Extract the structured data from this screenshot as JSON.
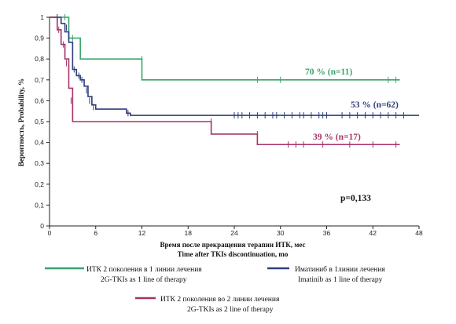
{
  "chart_data": {
    "type": "line",
    "xlabel_ru": "Время после прекращения терапии ИТК, мес",
    "xlabel_en": "Time after TKIs discontinuation,  mo",
    "ylabel": "Вероятность, Probability, %",
    "xlim": [
      0,
      48
    ],
    "ylim": [
      0,
      1
    ],
    "x_ticks": [
      0,
      6,
      12,
      18,
      24,
      30,
      36,
      42,
      48
    ],
    "y_ticks": [
      0,
      0.1,
      0.2,
      0.3,
      0.4,
      0.5,
      0.6,
      0.7,
      0.8,
      0.9,
      1
    ],
    "y_tick_labels": [
      "0",
      "0,1",
      "0,2",
      "0,3",
      "0,4",
      "0,5",
      "0,6",
      "0,7",
      "0,8",
      "0,9",
      "1"
    ],
    "grid": false,
    "p_value": "p=0,133",
    "series": [
      {
        "name": "ИТК 2 поколения в 1 линии лечения / 2G-TKIs as 1 line of therapy",
        "color": "#3aa36a",
        "annotation": "70 % (n=11)",
        "steps": [
          [
            0,
            1.0
          ],
          [
            2.5,
            0.9
          ],
          [
            4.0,
            0.8
          ],
          [
            12.0,
            0.7
          ],
          [
            45.5,
            0.7
          ]
        ],
        "censors": [
          [
            2.0,
            1.0
          ],
          [
            3.0,
            0.9
          ],
          [
            12.0,
            0.8
          ],
          [
            27.0,
            0.7
          ],
          [
            30.0,
            0.7
          ],
          [
            44.0,
            0.7
          ],
          [
            45.0,
            0.7
          ]
        ]
      },
      {
        "name": "Иматиниб в 1линии лечения / Imatinib as 1 line of therapy",
        "color": "#2e3f7a",
        "annotation": "53 % (n=62)",
        "steps": [
          [
            0,
            1.0
          ],
          [
            1.5,
            0.97
          ],
          [
            2.0,
            0.93
          ],
          [
            2.5,
            0.88
          ],
          [
            3.0,
            0.75
          ],
          [
            3.5,
            0.72
          ],
          [
            4.0,
            0.7
          ],
          [
            4.5,
            0.67
          ],
          [
            5.0,
            0.62
          ],
          [
            5.5,
            0.58
          ],
          [
            6.0,
            0.56
          ],
          [
            10.0,
            0.54
          ],
          [
            10.5,
            0.53
          ],
          [
            48.0,
            0.53
          ]
        ],
        "censors": [
          [
            1.0,
            1.0
          ],
          [
            2.2,
            0.95
          ],
          [
            3.2,
            0.75
          ],
          [
            3.8,
            0.72
          ],
          [
            4.2,
            0.7
          ],
          [
            4.8,
            0.65
          ],
          [
            5.2,
            0.6
          ],
          [
            5.7,
            0.57
          ],
          [
            10.2,
            0.54
          ],
          [
            24.0,
            0.53
          ],
          [
            24.5,
            0.53
          ],
          [
            25.0,
            0.53
          ],
          [
            26.0,
            0.53
          ],
          [
            27.0,
            0.53
          ],
          [
            28.0,
            0.53
          ],
          [
            29.0,
            0.53
          ],
          [
            29.5,
            0.53
          ],
          [
            30.5,
            0.53
          ],
          [
            31.5,
            0.53
          ],
          [
            32.5,
            0.53
          ],
          [
            33.0,
            0.53
          ],
          [
            34.0,
            0.53
          ],
          [
            35.0,
            0.53
          ],
          [
            35.5,
            0.53
          ],
          [
            36.0,
            0.53
          ],
          [
            38.0,
            0.53
          ],
          [
            39.0,
            0.53
          ],
          [
            40.0,
            0.53
          ],
          [
            41.0,
            0.53
          ],
          [
            42.0,
            0.53
          ],
          [
            43.0,
            0.53
          ],
          [
            44.0,
            0.53
          ],
          [
            45.0,
            0.53
          ],
          [
            46.0,
            0.53
          ]
        ]
      },
      {
        "name": "ИТК 2 поколения во 2 линии лечения / 2G-TKIs as 2 line of therapy",
        "color": "#a63367",
        "annotation": "39 % (n=17)",
        "steps": [
          [
            0,
            1.0
          ],
          [
            1.0,
            0.94
          ],
          [
            1.5,
            0.87
          ],
          [
            2.0,
            0.8
          ],
          [
            2.5,
            0.66
          ],
          [
            3.0,
            0.5
          ],
          [
            21.0,
            0.44
          ],
          [
            27.0,
            0.39
          ],
          [
            45.5,
            0.39
          ]
        ],
        "censors": [
          [
            1.2,
            0.94
          ],
          [
            1.8,
            0.87
          ],
          [
            2.2,
            0.78
          ],
          [
            2.8,
            0.6
          ],
          [
            21.0,
            0.5
          ],
          [
            27.0,
            0.44
          ],
          [
            31.0,
            0.39
          ],
          [
            32.0,
            0.39
          ],
          [
            33.0,
            0.39
          ],
          [
            35.5,
            0.39
          ],
          [
            39.0,
            0.39
          ],
          [
            42.0,
            0.39
          ],
          [
            45.0,
            0.39
          ]
        ]
      }
    ]
  },
  "legend": [
    {
      "ru": "ИТК 2 поколения в 1 линии лечения",
      "en": "2G-TKIs as 1 line  of therapy",
      "color": "#3aa36a"
    },
    {
      "ru": "Иматиниб в 1линии лечения",
      "en": "Imatinib as 1 line  of therapy",
      "color": "#2e3f7a"
    },
    {
      "ru": "ИТК 2 поколения во 2 линии лечения",
      "en": "2G-TKIs as 2 line  of therapy",
      "color": "#a63367"
    }
  ]
}
